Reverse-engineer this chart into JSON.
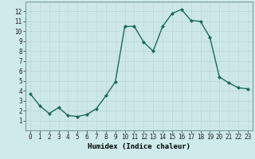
{
  "x": [
    0,
    1,
    2,
    3,
    4,
    5,
    6,
    7,
    8,
    9,
    10,
    11,
    12,
    13,
    14,
    15,
    16,
    17,
    18,
    19,
    20,
    21,
    22,
    23
  ],
  "y": [
    3.7,
    2.5,
    1.7,
    2.3,
    1.5,
    1.4,
    1.6,
    2.2,
    3.5,
    4.9,
    10.5,
    10.5,
    8.9,
    8.0,
    10.5,
    11.8,
    12.2,
    11.1,
    11.0,
    9.4,
    5.4,
    4.8,
    4.3,
    4.2
  ],
  "line_color": "#1a6b5a",
  "marker": "D",
  "marker_size": 2.0,
  "bg_color": "#ceeaea",
  "grid_major_color": "#b8d4d4",
  "grid_minor_color": "#cde5e5",
  "xlabel": "Humidex (Indice chaleur)",
  "xlim": [
    -0.5,
    23.5
  ],
  "ylim": [
    0,
    13
  ],
  "yticks": [
    1,
    2,
    3,
    4,
    5,
    6,
    7,
    8,
    9,
    10,
    11,
    12
  ],
  "xticks": [
    0,
    1,
    2,
    3,
    4,
    5,
    6,
    7,
    8,
    9,
    10,
    11,
    12,
    13,
    14,
    15,
    16,
    17,
    18,
    19,
    20,
    21,
    22,
    23
  ],
  "tick_fontsize": 5.5,
  "xlabel_fontsize": 6.5,
  "linewidth": 1.0
}
